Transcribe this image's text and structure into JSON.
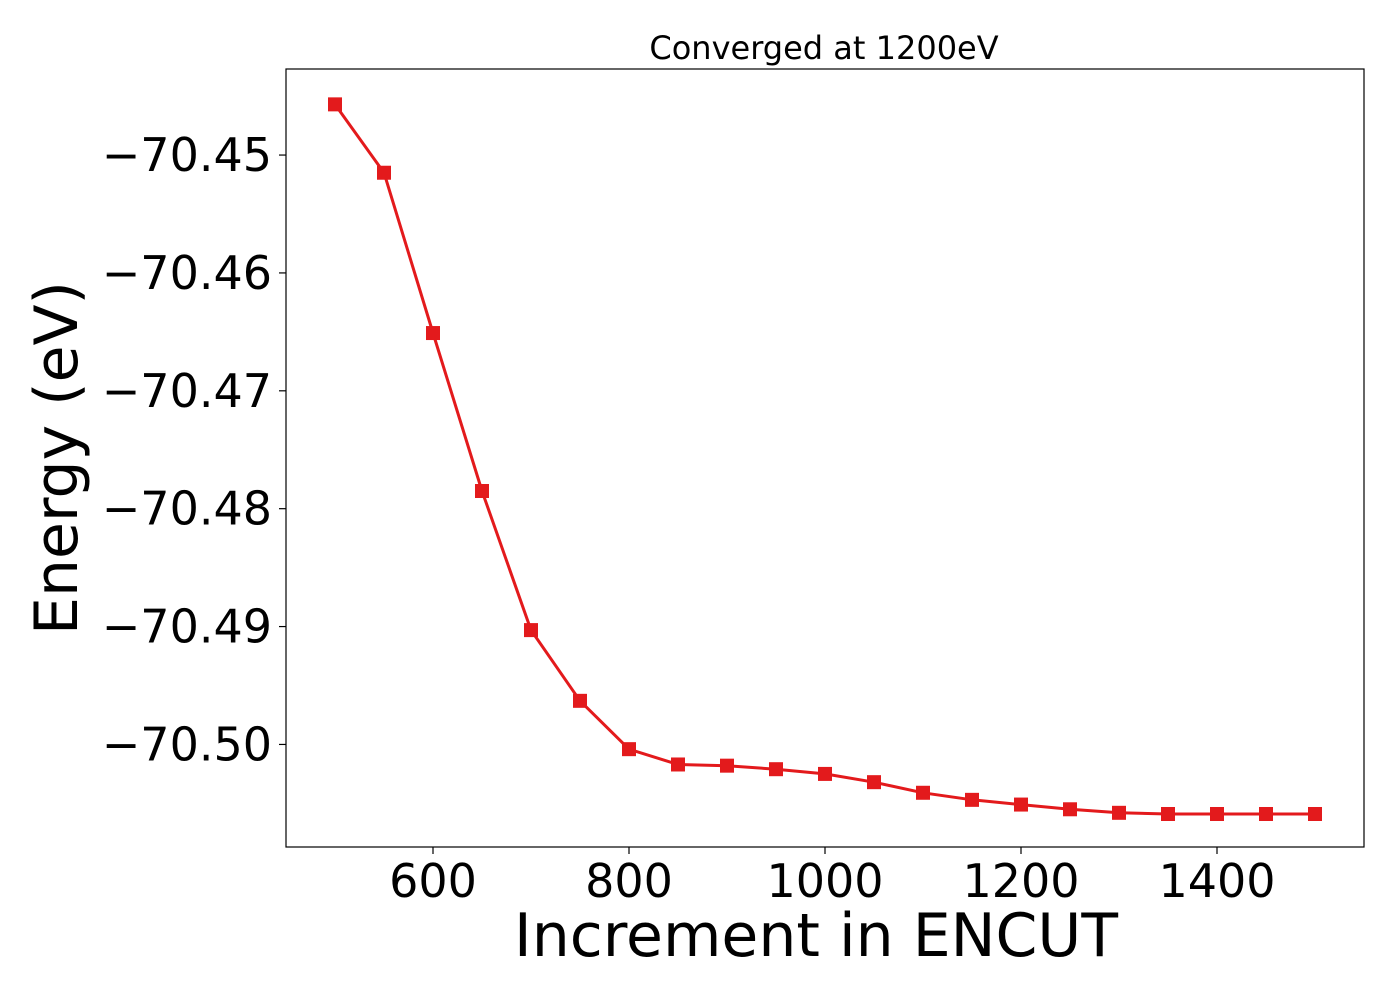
{
  "chart_data": {
    "type": "line",
    "title": "Converged at 1200eV",
    "xlabel": "Increment in ENCUT",
    "ylabel": "Energy (eV)",
    "xlim": [
      450,
      1550
    ],
    "ylim": [
      -70.5087,
      -70.4427
    ],
    "xticks": [
      600,
      800,
      1000,
      1200,
      1400
    ],
    "yticks": [
      -70.45,
      -70.46,
      -70.47,
      -70.48,
      -70.49,
      -70.5
    ],
    "ytick_labels": [
      "−70.45",
      "−70.46",
      "−70.47",
      "−70.48",
      "−70.49",
      "−70.50"
    ],
    "grid": false,
    "marker": "square",
    "colors": {
      "series": "#e31a1c"
    },
    "series": [
      {
        "x": [
          500,
          550,
          600,
          650,
          700,
          750,
          800,
          850,
          900,
          950,
          1000,
          1050,
          1100,
          1150,
          1200,
          1250,
          1300,
          1350,
          1400,
          1450,
          1500
        ],
        "y": [
          -70.4457,
          -70.4515,
          -70.4651,
          -70.4785,
          -70.4903,
          -70.4963,
          -70.5004,
          -70.5017,
          -70.5018,
          -70.5021,
          -70.5025,
          -70.5032,
          -70.5041,
          -70.5047,
          -70.5051,
          -70.5055,
          -70.5058,
          -70.5059,
          -70.5059,
          -70.5059,
          -70.5059
        ]
      }
    ]
  }
}
